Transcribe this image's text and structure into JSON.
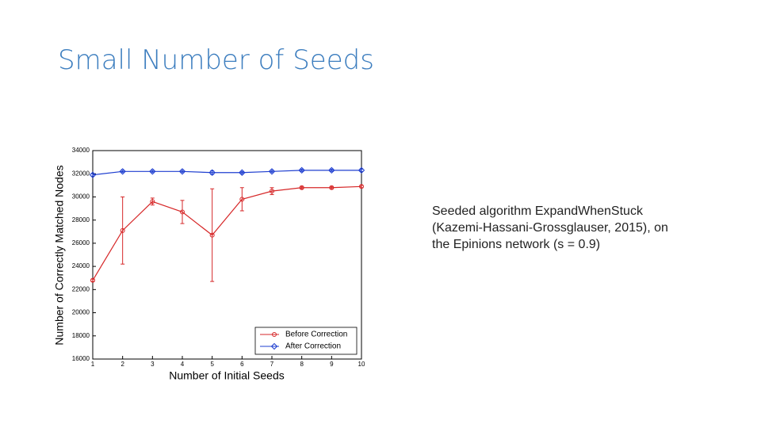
{
  "slide_title": "Small Number of Seeds",
  "note": "Seeded algorithm ExpandWhenStuck (Kazemi-Hassani-Grossglauser, 2015), on the Epinions network (s = 0.9)",
  "chart_data": {
    "type": "line",
    "xlabel": "Number of Initial Seeds",
    "ylabel": "Number of Correctly Matched Nodes",
    "x": [
      1,
      2,
      3,
      4,
      5,
      6,
      7,
      8,
      9,
      10
    ],
    "xlim": [
      1,
      10
    ],
    "xticks": [
      1,
      2,
      3,
      4,
      5,
      6,
      7,
      8,
      9,
      10
    ],
    "ylim": [
      16000,
      34000
    ],
    "yticks": [
      16000,
      18000,
      20000,
      22000,
      24000,
      26000,
      28000,
      30000,
      32000,
      34000
    ],
    "legend": "lower right",
    "series": [
      {
        "name": "Before Correction",
        "color": "#d62728",
        "marker": "circle",
        "values": [
          22800,
          27100,
          29600,
          28700,
          26700,
          29800,
          30500,
          30800,
          30800,
          30900
        ],
        "errors": [
          100,
          2900,
          300,
          1000,
          4000,
          1000,
          300,
          100,
          100,
          100
        ]
      },
      {
        "name": "After Correction",
        "color": "#1f3fd0",
        "marker": "diamond",
        "values": [
          31900,
          32200,
          32200,
          32200,
          32100,
          32100,
          32200,
          32300,
          32300,
          32300
        ],
        "errors": [
          100,
          100,
          100,
          100,
          150,
          100,
          100,
          100,
          100,
          100
        ]
      }
    ]
  }
}
